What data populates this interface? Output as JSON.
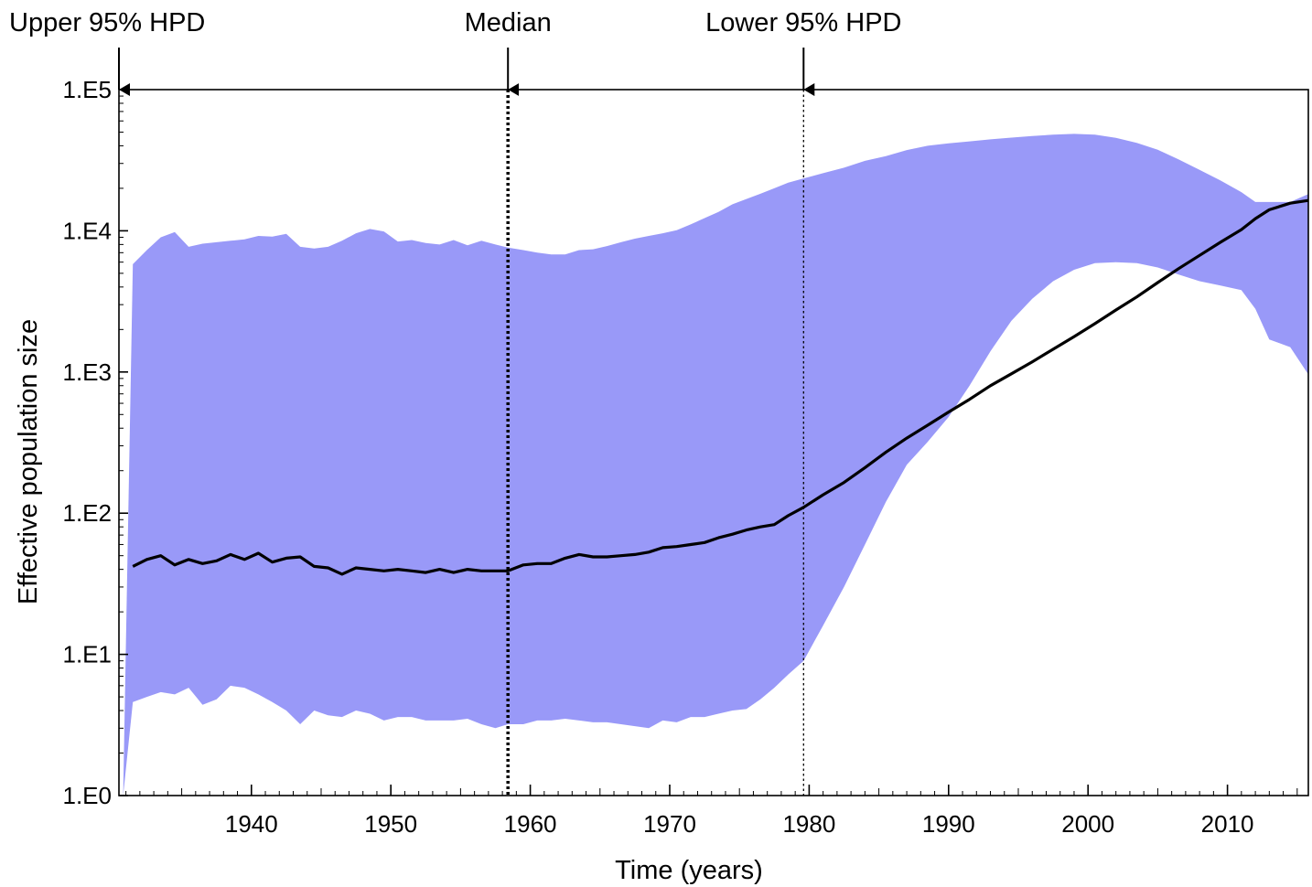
{
  "chart_data": {
    "type": "area",
    "xlabel": "Time (years)",
    "ylabel": "Effective population size",
    "xlim": [
      1930.5,
      2015.8
    ],
    "ylim": [
      1,
      100000
    ],
    "y_scale": "log",
    "x_ticks": [
      1940,
      1950,
      1960,
      1970,
      1980,
      1990,
      2000,
      2010
    ],
    "x_tick_labels": [
      "1940",
      "1950",
      "1960",
      "1970",
      "1980",
      "1990",
      "2000",
      "2010"
    ],
    "y_ticks": [
      1,
      10,
      100,
      1000,
      10000,
      100000
    ],
    "y_tick_labels": [
      "1.E0",
      "1.E1",
      "1.E2",
      "1.E3",
      "1.E4",
      "1.E5"
    ],
    "grid": false,
    "colors": {
      "band": "#9999f8",
      "median_line": "#000000"
    },
    "markers": [
      {
        "label": "Upper 95% HPD",
        "x": 1930.5,
        "style": "none"
      },
      {
        "label": "Median",
        "x": 1958.4,
        "style": "dotted-thick"
      },
      {
        "label": "Lower 95% HPD",
        "x": 1979.6,
        "style": "dotted-thin"
      }
    ],
    "series": [
      {
        "x": [
          1931.5,
          1932.5,
          1933.5,
          1934.5,
          1935.5,
          1936.5,
          1937.5,
          1938.5,
          1939.5,
          1940.5,
          1941.5,
          1942.5,
          1943.5,
          1944.5,
          1945.5,
          1946.5,
          1947.5,
          1948.5,
          1949.5,
          1950.5,
          1951.5,
          1952.5,
          1953.5,
          1954.5,
          1955.5,
          1956.5,
          1957.5,
          1958.4,
          1959.5,
          1960.5,
          1961.5,
          1962.5,
          1963.5,
          1964.5,
          1965.5,
          1966.5,
          1967.5,
          1968.5,
          1969.5,
          1970.5,
          1971.5,
          1972.5,
          1973.5,
          1974.5,
          1975.5,
          1976.5,
          1977.5,
          1978.5,
          1979.6,
          1981,
          1982.5,
          1984,
          1985.5,
          1987,
          1988.5,
          1990,
          1991.5,
          1993,
          1994.5,
          1996,
          1997.5,
          1999,
          2000.5,
          2002,
          2003.5,
          2005,
          2006.5,
          2008,
          2009.5,
          2011,
          2012,
          2013,
          2014.5,
          2015.8
        ],
        "values": [
          42,
          47,
          50,
          43,
          47,
          44,
          46,
          51,
          47,
          52,
          45,
          48,
          49,
          42,
          41,
          37,
          41,
          40,
          39,
          40,
          39,
          38,
          40,
          38,
          40,
          39,
          39,
          39,
          43,
          44,
          44,
          48,
          51,
          49,
          49,
          50,
          51,
          53,
          57,
          58,
          60,
          62,
          67,
          71,
          76,
          80,
          83,
          96,
          110,
          135,
          165,
          210,
          270,
          340,
          420,
          520,
          640,
          800,
          970,
          1180,
          1450,
          1780,
          2200,
          2750,
          3400,
          4300,
          5400,
          6700,
          8300,
          10200,
          12200,
          14100,
          15700,
          16400
        ]
      },
      {
        "x": [
          1930.5,
          1930.8,
          1931.5,
          1932.5,
          1933.5,
          1934.5,
          1935.5,
          1936.5,
          1937.5,
          1938.5,
          1939.5,
          1940.5,
          1941.5,
          1942.5,
          1943.5,
          1944.5,
          1945.5,
          1946.5,
          1947.5,
          1948.5,
          1949.5,
          1950.5,
          1951.5,
          1952.5,
          1953.5,
          1954.5,
          1955.5,
          1956.5,
          1957.5,
          1958.4,
          1959.5,
          1960.5,
          1961.5,
          1962.5,
          1963.5,
          1964.5,
          1965.5,
          1966.5,
          1967.5,
          1968.5,
          1969.5,
          1970.5,
          1971.5,
          1972.5,
          1973.5,
          1974.5,
          1975.5,
          1976.5,
          1977.5,
          1978.5,
          1979.6,
          1981,
          1982.5,
          1984,
          1985.5,
          1987,
          1988.5,
          1990,
          1991.5,
          1993,
          1994.5,
          1996,
          1997.5,
          1999,
          2000.5,
          2002,
          2003.5,
          2005,
          2006.5,
          2008,
          2009.5,
          2011,
          2012,
          2013,
          2014.5,
          2015.8
        ],
        "values": [
          1,
          1,
          5800,
          7300,
          9000,
          9800,
          7700,
          8100,
          8300,
          8500,
          8700,
          9200,
          9100,
          9500,
          7700,
          7500,
          7700,
          8500,
          9600,
          10300,
          9900,
          8400,
          8600,
          8200,
          8000,
          8600,
          7900,
          8500,
          8000,
          7600,
          7300,
          7000,
          6800,
          6800,
          7300,
          7400,
          7800,
          8300,
          8800,
          9200,
          9600,
          10100,
          11100,
          12300,
          13600,
          15400,
          16800,
          18300,
          20000,
          21900,
          23500,
          25600,
          28000,
          31300,
          33800,
          37300,
          40000,
          41600,
          43000,
          44400,
          45700,
          46900,
          48000,
          48600,
          48000,
          45600,
          42000,
          37500,
          32000,
          27000,
          22700,
          18800,
          16000,
          16000,
          16000,
          18200
        ]
      },
      {
        "x": [
          1930.5,
          1930.8,
          1931.5,
          1932.5,
          1933.5,
          1934.5,
          1935.5,
          1936.5,
          1937.5,
          1938.5,
          1939.5,
          1940.5,
          1941.5,
          1942.5,
          1943.5,
          1944.5,
          1945.5,
          1946.5,
          1947.5,
          1948.5,
          1949.5,
          1950.5,
          1951.5,
          1952.5,
          1953.5,
          1954.5,
          1955.5,
          1956.5,
          1957.5,
          1958.4,
          1959.5,
          1960.5,
          1961.5,
          1962.5,
          1963.5,
          1964.5,
          1965.5,
          1966.5,
          1967.5,
          1968.5,
          1969.5,
          1970.5,
          1971.5,
          1972.5,
          1973.5,
          1974.5,
          1975.5,
          1976.5,
          1977.5,
          1978.5,
          1979.6,
          1981,
          1982.5,
          1984,
          1985.5,
          1987,
          1988.5,
          1990,
          1991.5,
          1993,
          1994.5,
          1996,
          1997.5,
          1999,
          2000.5,
          2002,
          2003.5,
          2005,
          2006.5,
          2008,
          2009.5,
          2011,
          2012,
          2013,
          2014.5,
          2015.8
        ],
        "values": [
          1,
          1,
          4.6,
          5.0,
          5.4,
          5.2,
          5.8,
          4.4,
          4.8,
          6.0,
          5.8,
          5.2,
          4.6,
          4.0,
          3.2,
          4.0,
          3.7,
          3.6,
          4.0,
          3.8,
          3.4,
          3.6,
          3.6,
          3.4,
          3.4,
          3.4,
          3.5,
          3.2,
          3.0,
          3.2,
          3.2,
          3.4,
          3.4,
          3.5,
          3.4,
          3.3,
          3.3,
          3.2,
          3.1,
          3.0,
          3.4,
          3.3,
          3.6,
          3.6,
          3.8,
          4.0,
          4.1,
          4.8,
          5.8,
          7.2,
          9.0,
          16,
          30,
          60,
          120,
          220,
          320,
          480,
          800,
          1400,
          2300,
          3300,
          4400,
          5300,
          5900,
          6000,
          5900,
          5500,
          4900,
          4400,
          4100,
          3800,
          2800,
          1700,
          1500,
          960
        ]
      }
    ]
  }
}
